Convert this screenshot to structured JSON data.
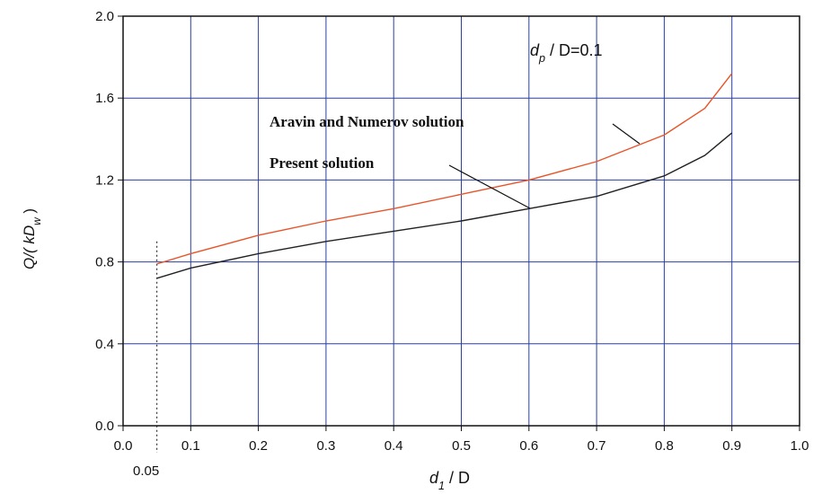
{
  "chart_data": {
    "type": "line",
    "x": [
      0.05,
      0.1,
      0.2,
      0.3,
      0.4,
      0.5,
      0.6,
      0.7,
      0.8,
      0.86,
      0.9
    ],
    "series": [
      {
        "name": "Aravin and Numerov solution",
        "color": "#e8542a",
        "values": [
          0.79,
          0.84,
          0.93,
          1.0,
          1.06,
          1.13,
          1.2,
          1.29,
          1.42,
          1.55,
          1.72
        ]
      },
      {
        "name": "Present solution",
        "color": "#222222",
        "values": [
          0.72,
          0.77,
          0.84,
          0.9,
          0.95,
          1.0,
          1.06,
          1.12,
          1.22,
          1.32,
          1.43
        ]
      }
    ],
    "xlim": [
      0,
      1
    ],
    "ylim": [
      0,
      2
    ],
    "xticks": [
      {
        "value": 0,
        "label": "0.0"
      },
      0.1,
      0.2,
      0.3,
      0.4,
      0.5,
      0.6,
      0.7,
      0.8,
      0.9,
      {
        "value": 1,
        "label": "1.0"
      }
    ],
    "yticks": [
      {
        "value": 0,
        "label": "0.0"
      },
      0.4,
      0.8,
      1.2,
      1.6,
      {
        "value": 2,
        "label": "2.0"
      }
    ],
    "grid": true,
    "grid_color": "#2b3fa0",
    "reference_x": {
      "value": 0.05,
      "label": "0.05"
    },
    "xlabel": {
      "text": "d",
      "sub": "1",
      "rest": " / D"
    },
    "ylabel": {
      "text": "Q/( kD",
      "sub": "w",
      "rest": " )"
    },
    "parameter": {
      "text": "d",
      "sub": "p",
      "rest": " / D=0.1"
    }
  }
}
